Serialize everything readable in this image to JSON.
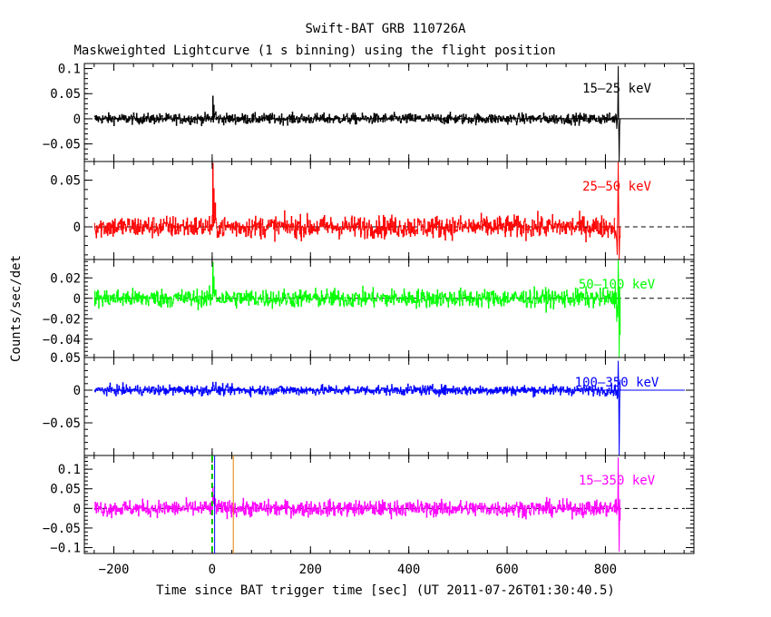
{
  "title": "Swift-BAT GRB 110726A",
  "subtitle": "Maskweighted Lightcurve (1 s binning) using the flight position",
  "xlabel": "Time since BAT trigger time [sec] (UT 2011-07-26T01:30:40.5)",
  "ylabel": "Counts/sec/det",
  "chart_data": {
    "type": "line",
    "title": "Swift-BAT GRB 110726A",
    "subtitle": "Maskweighted Lightcurve (1 s binning) using the flight position",
    "xlabel": "Time since BAT trigger time [sec] (UT 2011-07-26T01:30:40.5)",
    "ylabel": "Counts/sec/det",
    "xlim": [
      -260,
      980
    ],
    "x_ticks": [
      -200,
      0,
      200,
      400,
      600,
      800
    ],
    "data_range": [
      -240,
      830
    ],
    "vertical_markers": [
      {
        "x": 0,
        "color": "#00c000",
        "style": "dashed"
      },
      {
        "x": 5,
        "color": "#0000ff",
        "style": "solid"
      },
      {
        "x": 43,
        "color": "#e08000",
        "style": "solid"
      }
    ],
    "panels": [
      {
        "name": "15-25 keV",
        "label": "15–25 keV",
        "color": "#000000",
        "ylim": [
          -0.085,
          0.11
        ],
        "y_ticks": [
          0.1,
          0.05,
          0,
          -0.05
        ],
        "y_tick_labels": [
          "0.1",
          "0.05",
          "0",
          "−0.05"
        ],
        "noise": 0.0075,
        "peak": 0.045,
        "end_spike": [
          0.105,
          -0.085
        ],
        "zero_line": "solid"
      },
      {
        "name": "25-50 keV",
        "label": "25–50 keV",
        "color": "#ff0000",
        "ylim": [
          -0.035,
          0.07
        ],
        "y_ticks": [
          0.05,
          0
        ],
        "y_tick_labels": [
          "0.05",
          "0"
        ],
        "noise": 0.0085,
        "peak": 0.068,
        "end_spike": [
          0.07,
          -0.035
        ],
        "zero_line": "dashed"
      },
      {
        "name": "50-100 keV",
        "label": "50–100 keV",
        "color": "#00ff00",
        "ylim": [
          -0.058,
          0.038
        ],
        "y_ticks": [
          0.02,
          0,
          -0.02,
          -0.04
        ],
        "y_tick_labels": [
          "0.02",
          "0",
          "−0.02",
          "−0.04"
        ],
        "noise": 0.0065,
        "peak": 0.035,
        "end_spike": [
          0.038,
          -0.058
        ],
        "zero_line": "dashed"
      },
      {
        "name": "100-350 keV",
        "label": "100–350 keV",
        "color": "#0000ff",
        "ylim": [
          -0.1,
          0.05
        ],
        "y_ticks": [
          0.05,
          0,
          -0.05
        ],
        "y_tick_labels": [
          "0.05",
          "0",
          "−0.05"
        ],
        "noise": 0.0055,
        "peak": 0.012,
        "end_spike": [
          0.045,
          -0.1
        ],
        "zero_line": "solid"
      },
      {
        "name": "15-350 keV",
        "label": "15–350 keV",
        "color": "#ff00ff",
        "ylim": [
          -0.115,
          0.135
        ],
        "y_ticks": [
          0.1,
          0.05,
          0,
          -0.05,
          -0.1
        ],
        "y_tick_labels": [
          "0.1",
          "0.05",
          "0",
          "−0.05",
          "−0.1"
        ],
        "noise": 0.0145,
        "peak": 0.055,
        "end_spike": [
          0.13,
          -0.11
        ],
        "zero_line": "dashed"
      }
    ]
  }
}
